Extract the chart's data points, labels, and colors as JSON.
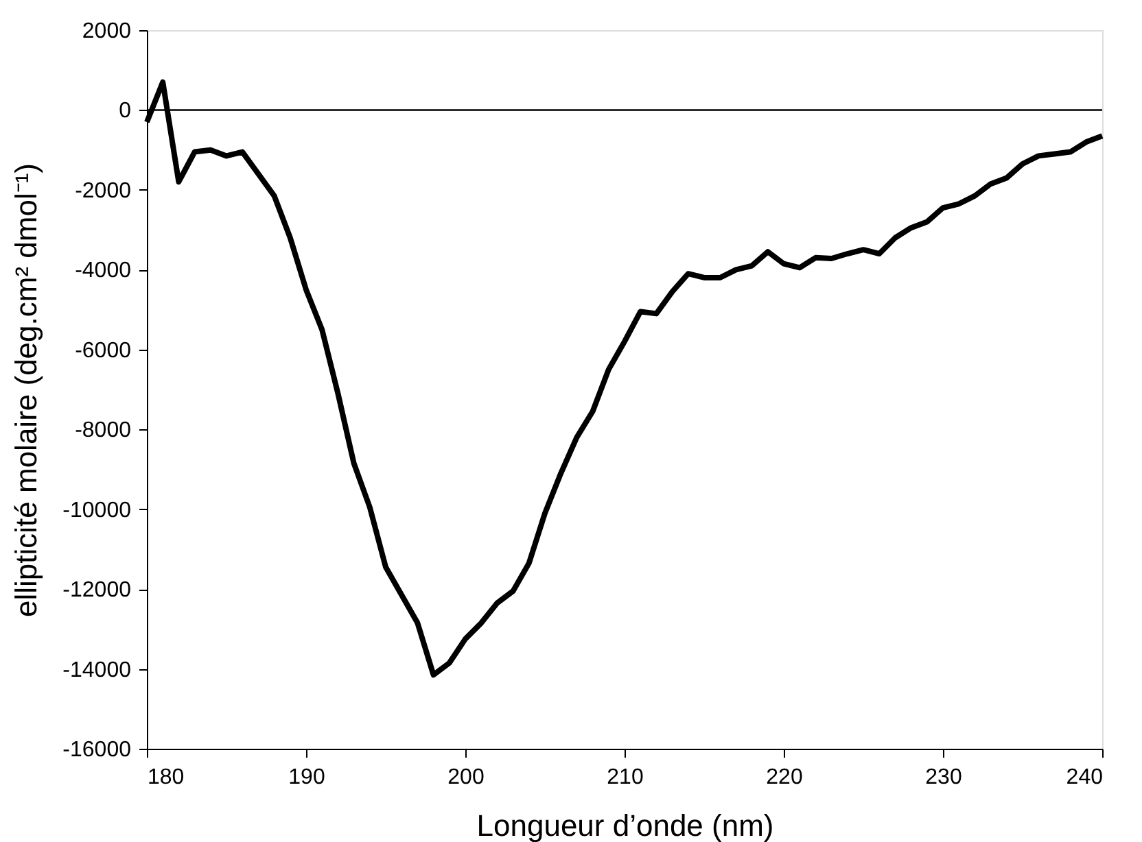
{
  "chart_data": {
    "type": "line",
    "xlabel": "Longueur d’onde (nm)",
    "ylabel": "ellipticité molaire (deg.cm² dmol⁻¹)",
    "x": [
      180,
      181,
      182,
      183,
      184,
      185,
      186,
      187,
      188,
      189,
      190,
      191,
      192,
      193,
      194,
      195,
      196,
      197,
      198,
      199,
      200,
      201,
      202,
      203,
      204,
      205,
      206,
      207,
      208,
      209,
      210,
      211,
      212,
      213,
      214,
      215,
      216,
      217,
      218,
      219,
      220,
      221,
      222,
      223,
      224,
      225,
      226,
      227,
      228,
      229,
      230,
      231,
      232,
      233,
      234,
      235,
      236,
      237,
      238,
      239,
      240
    ],
    "series": [
      {
        "color": "#000000",
        "values": [
          -300,
          700,
          -1800,
          -1050,
          -1000,
          -1150,
          -1050,
          -1600,
          -2150,
          -3200,
          -4500,
          -5500,
          -7100,
          -8850,
          -9950,
          -11450,
          -12150,
          -12850,
          -14150,
          -13850,
          -13250,
          -12850,
          -12350,
          -12050,
          -11350,
          -10100,
          -9100,
          -8200,
          -7550,
          -6500,
          -5800,
          -5050,
          -5100,
          -4550,
          -4100,
          -4200,
          -4200,
          -4000,
          -3900,
          -3550,
          -3850,
          -3950,
          -3700,
          -3720,
          -3600,
          -3500,
          -3600,
          -3200,
          -2950,
          -2800,
          -2450,
          -2350,
          -2150,
          -1850,
          -1700,
          -1350,
          -1150,
          -1100,
          -1050,
          -800,
          -650
        ]
      }
    ],
    "xlim": [
      180,
      240
    ],
    "xticks": [
      180,
      190,
      200,
      210,
      220,
      230,
      240
    ],
    "ylim": [
      -16000,
      2000
    ],
    "yticks": [
      -16000,
      -14000,
      -12000,
      -10000,
      -8000,
      -6000,
      -4000,
      -2000,
      0,
      2000
    ],
    "ref_lines": [
      {
        "axis": "y",
        "value": 0,
        "color": "#000000"
      }
    ],
    "grid": false,
    "marker": "none",
    "line_style": "solid"
  }
}
